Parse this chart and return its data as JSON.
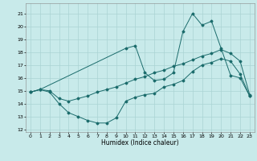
{
  "xlabel": "Humidex (Indice chaleur)",
  "background_color": "#c8eaea",
  "grid_color": "#aad4d4",
  "line_color": "#1a6b6b",
  "xlim": [
    -0.5,
    23.5
  ],
  "ylim": [
    11.8,
    21.8
  ],
  "yticks": [
    12,
    13,
    14,
    15,
    16,
    17,
    18,
    19,
    20,
    21
  ],
  "xticks": [
    0,
    1,
    2,
    3,
    4,
    5,
    6,
    7,
    8,
    9,
    10,
    11,
    12,
    13,
    14,
    15,
    16,
    17,
    18,
    19,
    20,
    21,
    22,
    23
  ],
  "series": [
    {
      "x": [
        0,
        1,
        2,
        3,
        4,
        5,
        6,
        7,
        8,
        9,
        10,
        11,
        12,
        13,
        14,
        15,
        16,
        17,
        18,
        19,
        20,
        21,
        22,
        23
      ],
      "y": [
        14.9,
        15.1,
        14.9,
        14.0,
        13.3,
        13.0,
        12.7,
        12.5,
        12.5,
        12.9,
        14.2,
        14.5,
        14.7,
        14.8,
        15.3,
        15.5,
        15.8,
        16.5,
        17.0,
        17.2,
        17.5,
        17.3,
        16.3,
        14.6
      ]
    },
    {
      "x": [
        0,
        1,
        2,
        3,
        4,
        5,
        6,
        7,
        8,
        9,
        10,
        11,
        12,
        13,
        14,
        15,
        16,
        17,
        18,
        19,
        20,
        21,
        22,
        23
      ],
      "y": [
        14.9,
        15.1,
        15.0,
        14.4,
        14.2,
        14.4,
        14.6,
        14.9,
        15.1,
        15.3,
        15.6,
        15.9,
        16.1,
        16.4,
        16.6,
        16.9,
        17.1,
        17.4,
        17.7,
        17.9,
        18.2,
        17.9,
        17.3,
        14.7
      ]
    },
    {
      "x": [
        0,
        1,
        10,
        11,
        12,
        13,
        14,
        15,
        16,
        17,
        18,
        19,
        20,
        21,
        22,
        23
      ],
      "y": [
        14.9,
        15.1,
        18.3,
        18.5,
        16.4,
        15.8,
        15.9,
        16.4,
        19.6,
        21.0,
        20.1,
        20.4,
        18.3,
        16.2,
        16.0,
        14.6
      ]
    }
  ]
}
